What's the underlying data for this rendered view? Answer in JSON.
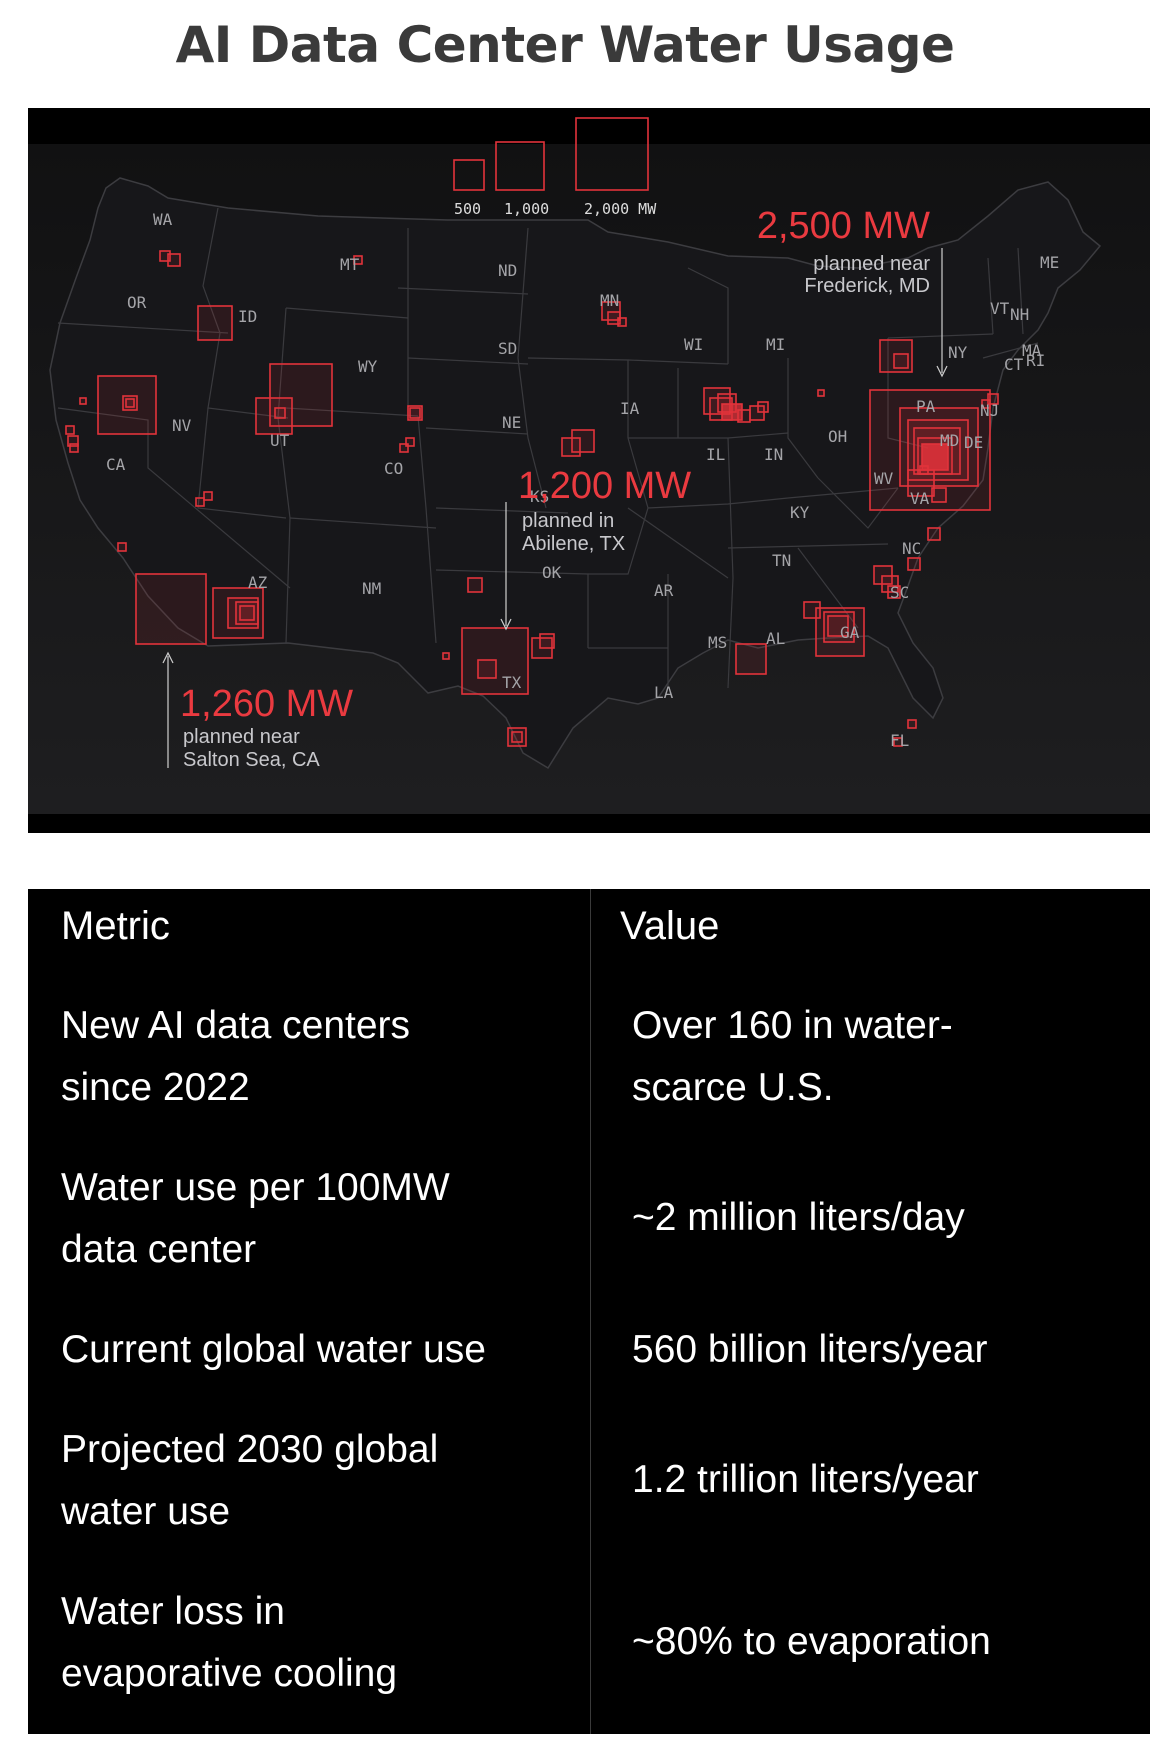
{
  "title": "AI Data Center Water Usage",
  "map": {
    "legend": {
      "labels": [
        "500",
        "1,000",
        "2,000 MW"
      ]
    },
    "state_labels": [
      "WA",
      "OR",
      "ID",
      "MT",
      "WY",
      "NV",
      "CA",
      "UT",
      "CO",
      "AZ",
      "NM",
      "ND",
      "SD",
      "NE",
      "MN",
      "IA",
      "KS",
      "OK",
      "TX",
      "WI",
      "MI",
      "IL",
      "IN",
      "OH",
      "KY",
      "TN",
      "AR",
      "MS",
      "AL",
      "LA",
      "GA",
      "SC",
      "NC",
      "VA",
      "WV",
      "PA",
      "NY",
      "NJ",
      "MD",
      "DE",
      "ME",
      "VT",
      "NH",
      "MA",
      "CT",
      "RI",
      "FL"
    ],
    "annotations": [
      {
        "value": "2,500 MW",
        "line1": "planned near",
        "line2": "Frederick, MD"
      },
      {
        "value": "1,200 MW",
        "line1": "planned in",
        "line2": "Abilene, TX"
      },
      {
        "value": "1,260 MW",
        "line1": "planned near",
        "line2": "Salton Sea, CA"
      }
    ],
    "colors": {
      "accent": "#e2333b",
      "background": "#141414",
      "state_border": "#3c3c40"
    }
  },
  "table": {
    "headers": {
      "metric": "Metric",
      "value": "Value"
    },
    "rows": [
      {
        "metric_l1": "New AI data centers",
        "metric_l2": "since 2022",
        "value_l1": "Over 160 in water-",
        "value_l2": "scarce U.S."
      },
      {
        "metric_l1": "Water use per 100MW",
        "metric_l2": "data center",
        "value_l1": "~2 million liters/day",
        "value_l2": ""
      },
      {
        "metric_l1": "Current global water use",
        "metric_l2": "",
        "value_l1": "560 billion liters/year",
        "value_l2": ""
      },
      {
        "metric_l1": "Projected 2030 global",
        "metric_l2": "water use",
        "value_l1": "1.2 trillion liters/year",
        "value_l2": ""
      },
      {
        "metric_l1": "Water loss in",
        "metric_l2": "evaporative cooling",
        "value_l1": "~80% to evaporation",
        "value_l2": ""
      }
    ]
  }
}
